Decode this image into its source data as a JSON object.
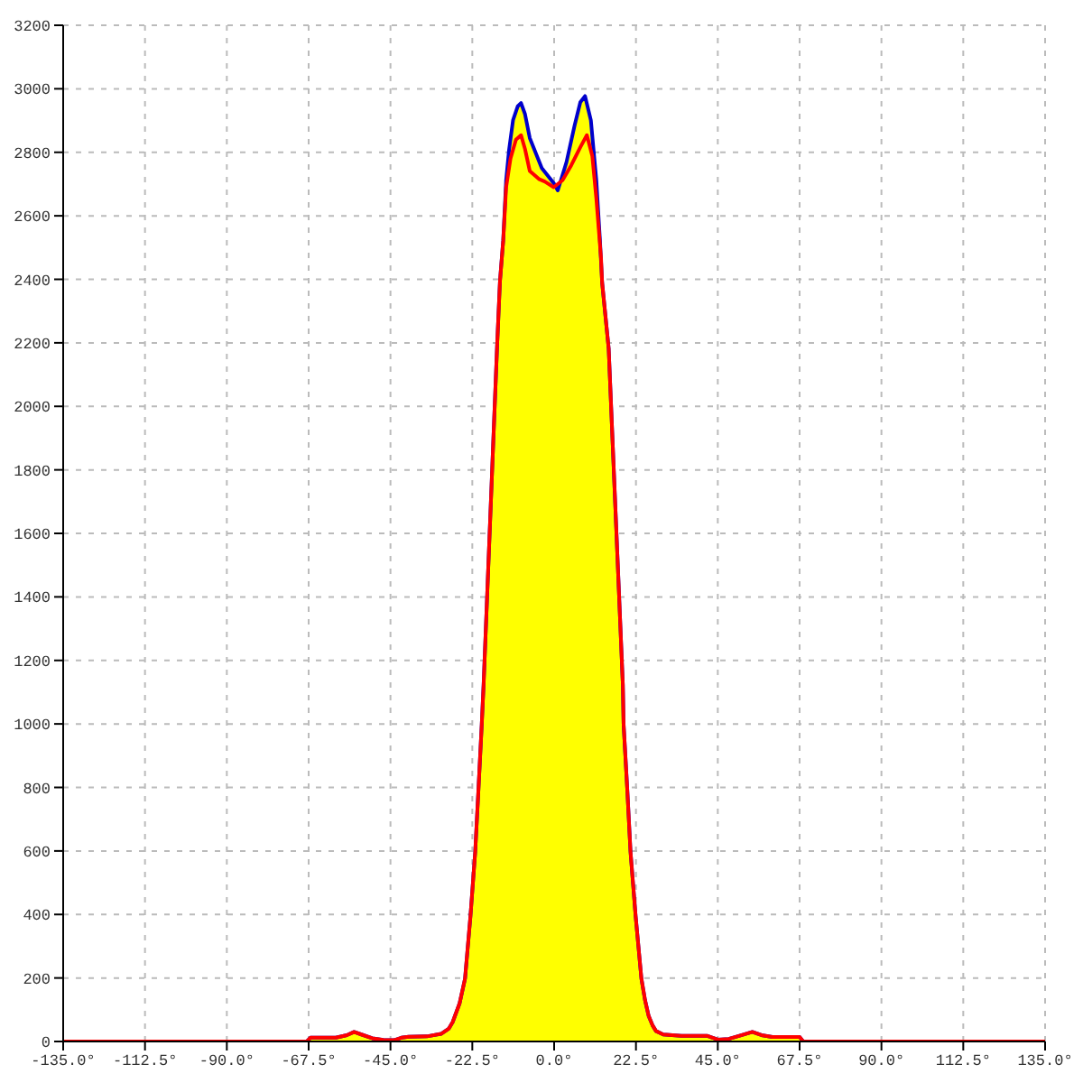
{
  "chart_data": {
    "type": "area",
    "xlim": [
      -135,
      135
    ],
    "xticks": [
      {
        "value": -135,
        "label": "-135.0°"
      },
      {
        "value": -112.5,
        "label": "-112.5°"
      },
      {
        "value": -90,
        "label": "-90.0°"
      },
      {
        "value": -67.5,
        "label": "-67.5°"
      },
      {
        "value": -45,
        "label": "-45.0°"
      },
      {
        "value": -22.5,
        "label": "-22.5°"
      },
      {
        "value": 0,
        "label": "0.0°"
      },
      {
        "value": 22.5,
        "label": "22.5°"
      },
      {
        "value": 45,
        "label": "45.0°"
      },
      {
        "value": 67.5,
        "label": "67.5°"
      },
      {
        "value": 90,
        "label": "90.0°"
      },
      {
        "value": 112.5,
        "label": "112.5°"
      },
      {
        "value": 135,
        "label": "135.0°"
      }
    ],
    "ylim": [
      0,
      3200
    ],
    "yticks": [
      0,
      200,
      400,
      600,
      800,
      1000,
      1200,
      1400,
      1600,
      1800,
      2000,
      2200,
      2400,
      2600,
      2800,
      3000,
      3200
    ],
    "grid": true,
    "series": [
      {
        "color": "#ffff00",
        "x": [
          -90,
          -68,
          -67,
          -60,
          -57,
          -55,
          -53,
          -50,
          -47,
          -44,
          -42,
          -40,
          -35,
          -31.1,
          -29,
          -27.9,
          -26,
          -24.5,
          -23,
          -21.7,
          -20.8,
          -19.9,
          -19.4,
          -15.7,
          -14.9,
          -14,
          -13.2,
          -12.4,
          -11.3,
          -10,
          -9.1,
          -8,
          -6.7,
          -3.4,
          -0.1,
          1,
          3.4,
          5.6,
          7.2,
          8.5,
          10.1,
          11.6,
          12.6,
          13.2,
          15,
          18.9,
          19.1,
          20.1,
          21,
          22.4,
          24,
          25,
          26,
          27.1,
          28,
          30,
          35,
          42,
          45,
          48,
          51,
          54.5,
          57,
          60,
          67.5,
          68.5,
          90
        ],
        "values": [
          0,
          0,
          12,
          12,
          20,
          30,
          22,
          10,
          5,
          4,
          12,
          15,
          16,
          24,
          40,
          61,
          120,
          198,
          396,
          598,
          796,
          999,
          1122,
          2186,
          2393,
          2523,
          2712,
          2807,
          2901,
          2945,
          2955,
          2920,
          2845,
          2750,
          2703,
          2680,
          2769,
          2883,
          2958,
          2977,
          2901,
          2712,
          2523,
          2390,
          2182,
          1122,
          999,
          796,
          598,
          396,
          198,
          130,
          80,
          50,
          33,
          22,
          18,
          18,
          6,
          8,
          18,
          30,
          20,
          14,
          14,
          0,
          0
        ]
      },
      {
        "type": "line",
        "color": "#ff0000",
        "x": [
          -135,
          -90,
          -68,
          -67,
          -60,
          -57,
          -55,
          -53,
          -50,
          -47,
          -44,
          -42,
          -40,
          -35,
          -31.1,
          -29,
          -27.9,
          -26,
          -24.5,
          -23,
          -21.7,
          -20.8,
          -19.9,
          -19.4,
          -15.7,
          -14.9,
          -14,
          -13.2,
          -12,
          -10.5,
          -9.1,
          -8,
          -6.7,
          -4.2,
          -2.6,
          -0.1,
          2.3,
          4.7,
          7.2,
          9,
          10.5,
          11.6,
          12.9,
          13.2,
          15,
          18.9,
          19.1,
          20.1,
          21,
          22.4,
          24,
          25,
          26,
          27.1,
          28,
          30,
          35,
          42,
          45,
          48,
          51,
          54.5,
          57,
          60,
          67.5,
          68.5,
          90,
          135
        ],
        "values": [
          0,
          0,
          0,
          12,
          12,
          20,
          30,
          22,
          10,
          5,
          4,
          12,
          15,
          16,
          24,
          40,
          61,
          120,
          198,
          396,
          598,
          796,
          999,
          1122,
          2186,
          2393,
          2523,
          2690,
          2780,
          2840,
          2854,
          2810,
          2741,
          2716,
          2708,
          2690,
          2712,
          2759,
          2816,
          2854,
          2788,
          2655,
          2466,
          2390,
          2182,
          1122,
          999,
          796,
          598,
          396,
          198,
          130,
          80,
          50,
          33,
          22,
          18,
          18,
          6,
          8,
          18,
          30,
          20,
          14,
          14,
          0,
          0,
          0
        ]
      }
    ]
  }
}
